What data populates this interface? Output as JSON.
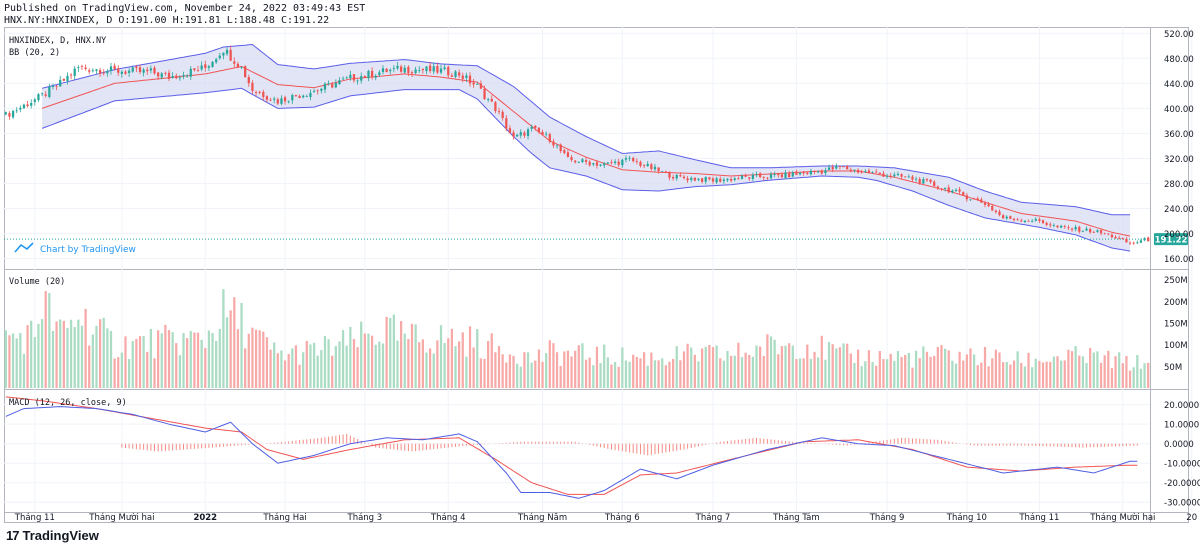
{
  "header": {
    "published": "Published on TradingView.com, November 24, 2022 03:49:43 EST",
    "ohlc": "HNX.NY:HNXINDEX, D O:191.00 H:191.81 L:188.48 C:191.22"
  },
  "footer": {
    "logo_mark": "17",
    "logo_text": "TradingView"
  },
  "colors": {
    "up": "#26a69a",
    "down": "#ef5350",
    "bb_band": "#5a5ee8",
    "bb_fill": "#d8dcf3",
    "bb_basis": "#f05454",
    "macd": "#4f5fe3",
    "signal": "#f05454",
    "vol_up": "#a9dcc3",
    "vol_down": "#f7a9a7",
    "last_price": "#26a69a"
  },
  "chart_data": [
    {
      "type": "candlestick",
      "pane": "price",
      "symbol_label": "HNXINDEX, D, HNX.NY",
      "indicator_label": "BB (20, 2)",
      "watermark": "Chart by TradingView",
      "last_price_label": "191.22",
      "ylim": [
        145,
        530
      ],
      "y_ticks": [
        "520.00",
        "480.00",
        "440.00",
        "400.00",
        "360.00",
        "320.00",
        "280.00",
        "240.00",
        "200.00",
        "160.00"
      ],
      "x_ticks": [
        "Tháng 11",
        "Tháng Mười hai",
        "2022",
        "Tháng Hai",
        "Tháng 3",
        "Tháng 4",
        "Tháng Năm",
        "Tháng 6",
        "Tháng 7",
        "Tháng Tám",
        "Tháng 9",
        "Tháng 10",
        "Tháng 11",
        "Tháng Mười hai",
        "20"
      ],
      "close_keypoints": [
        [
          0,
          389
        ],
        [
          10,
          420
        ],
        [
          15,
          440
        ],
        [
          20,
          465
        ],
        [
          30,
          460
        ],
        [
          40,
          458
        ],
        [
          45,
          450
        ],
        [
          55,
          465
        ],
        [
          60,
          495
        ],
        [
          65,
          465
        ],
        [
          68,
          430
        ],
        [
          75,
          412
        ],
        [
          85,
          428
        ],
        [
          95,
          448
        ],
        [
          105,
          460
        ],
        [
          110,
          463
        ],
        [
          120,
          460
        ],
        [
          125,
          455
        ],
        [
          130,
          435
        ],
        [
          135,
          400
        ],
        [
          140,
          352
        ],
        [
          145,
          367
        ],
        [
          150,
          352
        ],
        [
          155,
          318
        ],
        [
          165,
          310
        ],
        [
          172,
          318
        ],
        [
          180,
          300
        ],
        [
          185,
          290
        ],
        [
          195,
          285
        ],
        [
          205,
          290
        ],
        [
          215,
          293
        ],
        [
          225,
          300
        ],
        [
          230,
          306
        ],
        [
          235,
          300
        ],
        [
          240,
          296
        ],
        [
          250,
          288
        ],
        [
          260,
          270
        ],
        [
          270,
          248
        ],
        [
          275,
          225
        ],
        [
          285,
          220
        ],
        [
          290,
          210
        ],
        [
          300,
          204
        ],
        [
          305,
          196
        ],
        [
          310,
          184
        ],
        [
          315,
          191
        ]
      ],
      "bollinger": {
        "upper_keypoints": [
          [
            10,
            432
          ],
          [
            30,
            462
          ],
          [
            55,
            488
          ],
          [
            60,
            498
          ],
          [
            68,
            502
          ],
          [
            75,
            470
          ],
          [
            85,
            463
          ],
          [
            95,
            472
          ],
          [
            110,
            478
          ],
          [
            120,
            471
          ],
          [
            130,
            468
          ],
          [
            140,
            435
          ],
          [
            150,
            386
          ],
          [
            160,
            355
          ],
          [
            170,
            328
          ],
          [
            180,
            332
          ],
          [
            190,
            318
          ],
          [
            200,
            305
          ],
          [
            210,
            305
          ],
          [
            225,
            308
          ],
          [
            235,
            308
          ],
          [
            245,
            305
          ],
          [
            260,
            290
          ],
          [
            270,
            268
          ],
          [
            280,
            250
          ],
          [
            295,
            243
          ],
          [
            305,
            230
          ]
        ],
        "lower_keypoints": [
          [
            10,
            368
          ],
          [
            30,
            412
          ],
          [
            55,
            425
          ],
          [
            65,
            432
          ],
          [
            75,
            400
          ],
          [
            85,
            402
          ],
          [
            95,
            420
          ],
          [
            110,
            430
          ],
          [
            125,
            430
          ],
          [
            130,
            415
          ],
          [
            140,
            355
          ],
          [
            145,
            328
          ],
          [
            150,
            305
          ],
          [
            160,
            292
          ],
          [
            170,
            270
          ],
          [
            180,
            268
          ],
          [
            190,
            275
          ],
          [
            200,
            278
          ],
          [
            210,
            285
          ],
          [
            225,
            292
          ],
          [
            235,
            290
          ],
          [
            240,
            285
          ],
          [
            250,
            268
          ],
          [
            260,
            245
          ],
          [
            270,
            225
          ],
          [
            285,
            210
          ],
          [
            295,
            198
          ],
          [
            305,
            177
          ],
          [
            310,
            172
          ]
        ],
        "basis_keypoints": [
          [
            10,
            400
          ],
          [
            30,
            440
          ],
          [
            55,
            455
          ],
          [
            65,
            467
          ],
          [
            75,
            438
          ],
          [
            85,
            433
          ],
          [
            95,
            447
          ],
          [
            110,
            455
          ],
          [
            120,
            450
          ],
          [
            130,
            442
          ],
          [
            140,
            395
          ],
          [
            150,
            348
          ],
          [
            160,
            322
          ],
          [
            170,
            302
          ],
          [
            180,
            298
          ],
          [
            190,
            296
          ],
          [
            200,
            292
          ],
          [
            210,
            295
          ],
          [
            225,
            300
          ],
          [
            235,
            300
          ],
          [
            245,
            290
          ],
          [
            260,
            268
          ],
          [
            270,
            250
          ],
          [
            280,
            232
          ],
          [
            295,
            220
          ],
          [
            305,
            202
          ],
          [
            310,
            196
          ]
        ]
      }
    },
    {
      "type": "bar",
      "pane": "volume",
      "label": "Volume (20)",
      "ylim": [
        0,
        270
      ],
      "y_ticks": [
        "250M",
        "200M",
        "150M",
        "100M",
        "50M"
      ],
      "volume_keypoints": [
        [
          0,
          120
        ],
        [
          8,
          130
        ],
        [
          10,
          215
        ],
        [
          15,
          130
        ],
        [
          18,
          150
        ],
        [
          20,
          180
        ],
        [
          25,
          140
        ],
        [
          30,
          105
        ],
        [
          40,
          110
        ],
        [
          55,
          120
        ],
        [
          60,
          180
        ],
        [
          65,
          160
        ],
        [
          68,
          130
        ],
        [
          75,
          80
        ],
        [
          85,
          90
        ],
        [
          95,
          110
        ],
        [
          105,
          140
        ],
        [
          110,
          120
        ],
        [
          125,
          120
        ],
        [
          130,
          110
        ],
        [
          135,
          95
        ],
        [
          140,
          90
        ],
        [
          145,
          70
        ],
        [
          150,
          85
        ],
        [
          160,
          80
        ],
        [
          170,
          75
        ],
        [
          180,
          75
        ],
        [
          190,
          80
        ],
        [
          200,
          80
        ],
        [
          210,
          100
        ],
        [
          220,
          110
        ],
        [
          230,
          80
        ],
        [
          240,
          75
        ],
        [
          250,
          75
        ],
        [
          260,
          80
        ],
        [
          270,
          75
        ],
        [
          280,
          65
        ],
        [
          290,
          75
        ],
        [
          300,
          75
        ],
        [
          310,
          60
        ]
      ]
    },
    {
      "type": "line",
      "pane": "macd",
      "label": "MACD (12, 26, close, 9)",
      "ylim": [
        -35,
        27
      ],
      "y_ticks": [
        "20.0000",
        "10.0000",
        "0.0000",
        "-10.0000",
        "-20.0000",
        "-30.0000"
      ],
      "series": [
        {
          "keypoints": [
            [
              0,
              14
            ],
            [
              5,
              18
            ],
            [
              15,
              19
            ],
            [
              25,
              18
            ],
            [
              35,
              15
            ],
            [
              45,
              10
            ],
            [
              55,
              6
            ],
            [
              62,
              11
            ],
            [
              68,
              0
            ],
            [
              75,
              -10
            ],
            [
              85,
              -6
            ],
            [
              95,
              0
            ],
            [
              105,
              3
            ],
            [
              115,
              2
            ],
            [
              125,
              5
            ],
            [
              130,
              1
            ],
            [
              138,
              -15
            ],
            [
              142,
              -25
            ],
            [
              150,
              -25
            ],
            [
              158,
              -28
            ],
            [
              165,
              -24
            ],
            [
              175,
              -13
            ],
            [
              185,
              -18
            ],
            [
              195,
              -11
            ],
            [
              210,
              -3
            ],
            [
              225,
              3
            ],
            [
              235,
              0
            ],
            [
              245,
              -1
            ],
            [
              260,
              -8
            ],
            [
              275,
              -15
            ],
            [
              290,
              -12
            ],
            [
              300,
              -15
            ],
            [
              310,
              -9
            ]
          ]
        },
        {
          "keypoints": [
            [
              0,
              24
            ],
            [
              10,
              22
            ],
            [
              25,
              18
            ],
            [
              40,
              13
            ],
            [
              55,
              8
            ],
            [
              65,
              6
            ],
            [
              72,
              -3
            ],
            [
              82,
              -8
            ],
            [
              95,
              -3
            ],
            [
              110,
              2
            ],
            [
              125,
              3
            ],
            [
              135,
              -8
            ],
            [
              145,
              -20
            ],
            [
              155,
              -26
            ],
            [
              165,
              -26
            ],
            [
              175,
              -16
            ],
            [
              185,
              -15
            ],
            [
              200,
              -8
            ],
            [
              220,
              1
            ],
            [
              235,
              2
            ],
            [
              250,
              -3
            ],
            [
              265,
              -12
            ],
            [
              280,
              -14
            ],
            [
              295,
              -12
            ],
            [
              310,
              -11
            ]
          ]
        }
      ],
      "histogram_keypoints": [
        [
          0,
          -2
        ],
        [
          10,
          -4
        ],
        [
          25,
          -2
        ],
        [
          45,
          1
        ],
        [
          55,
          3
        ],
        [
          62,
          5
        ],
        [
          70,
          -2
        ],
        [
          80,
          -4
        ],
        [
          95,
          -1
        ],
        [
          110,
          1
        ],
        [
          125,
          1
        ],
        [
          135,
          -3
        ],
        [
          145,
          -6
        ],
        [
          155,
          -3
        ],
        [
          165,
          1
        ],
        [
          175,
          3
        ],
        [
          185,
          1
        ],
        [
          200,
          -1
        ],
        [
          215,
          3
        ],
        [
          225,
          2
        ],
        [
          235,
          -1
        ],
        [
          250,
          -1
        ],
        [
          265,
          -2
        ],
        [
          280,
          -1
        ],
        [
          295,
          0
        ],
        [
          310,
          1
        ]
      ]
    }
  ]
}
